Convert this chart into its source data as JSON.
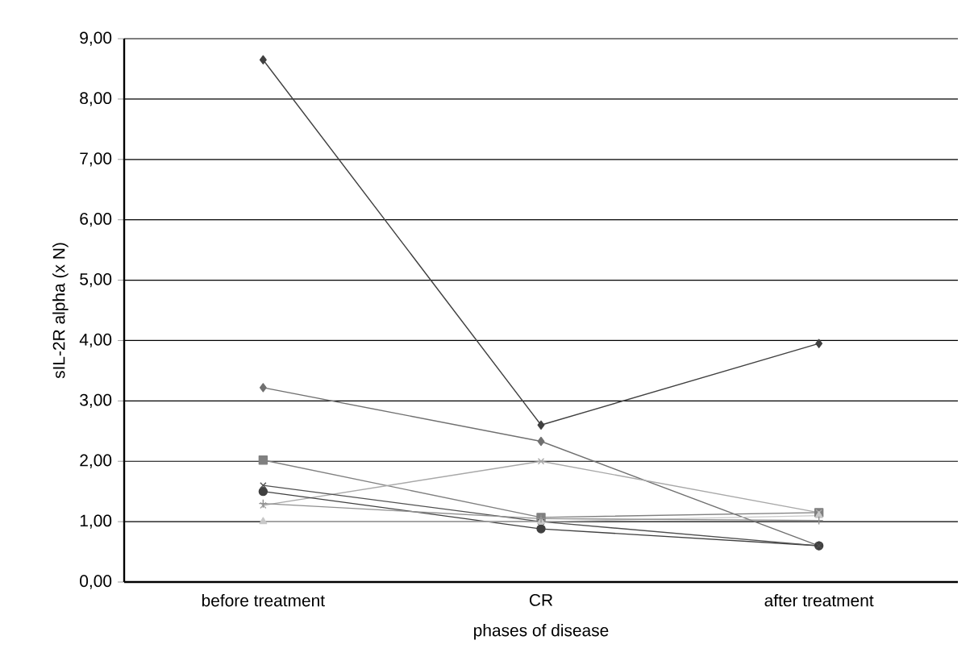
{
  "chart_data": {
    "type": "line",
    "xlabel": "phases of disease",
    "ylabel": "sIL-2R alpha (x N)",
    "categories": [
      "before treatment",
      "CR",
      "after treatment"
    ],
    "series": [
      {
        "color": "#404040",
        "marker": "diamond",
        "values": [
          8.65,
          2.6,
          3.95
        ]
      },
      {
        "color": "#707070",
        "marker": "diamond",
        "values": [
          3.22,
          2.33,
          0.6
        ]
      },
      {
        "color": "#808080",
        "marker": "square",
        "values": [
          2.02,
          1.07,
          1.15
        ]
      },
      {
        "color": "#a8a8a8",
        "marker": "cross",
        "values": [
          1.27,
          2.0,
          1.15
        ]
      },
      {
        "color": "#404040",
        "marker": "circle",
        "values": [
          1.5,
          0.88,
          0.6
        ]
      },
      {
        "color": "#505050",
        "marker": "cross",
        "values": [
          1.6,
          1.0,
          0.6
        ]
      },
      {
        "color": "#c8c8c8",
        "marker": "triangle",
        "values": [
          1.0,
          1.0,
          1.1
        ]
      },
      {
        "color": "#909090",
        "marker": "plus",
        "values": [
          1.3,
          1.05,
          1.02
        ]
      }
    ],
    "ylim": [
      0,
      9
    ],
    "yticks": [
      {
        "value": 0,
        "label": "0,00"
      },
      {
        "value": 1,
        "label": "1,00"
      },
      {
        "value": 2,
        "label": "2,00"
      },
      {
        "value": 3,
        "label": "3,00"
      },
      {
        "value": 4,
        "label": "4,00"
      },
      {
        "value": 5,
        "label": "5,00"
      },
      {
        "value": 6,
        "label": "6,00"
      },
      {
        "value": 7,
        "label": "7,00"
      },
      {
        "value": 8,
        "label": "8,00"
      },
      {
        "value": 9,
        "label": "9,00"
      }
    ],
    "grid": "y",
    "line_style": "solid"
  }
}
